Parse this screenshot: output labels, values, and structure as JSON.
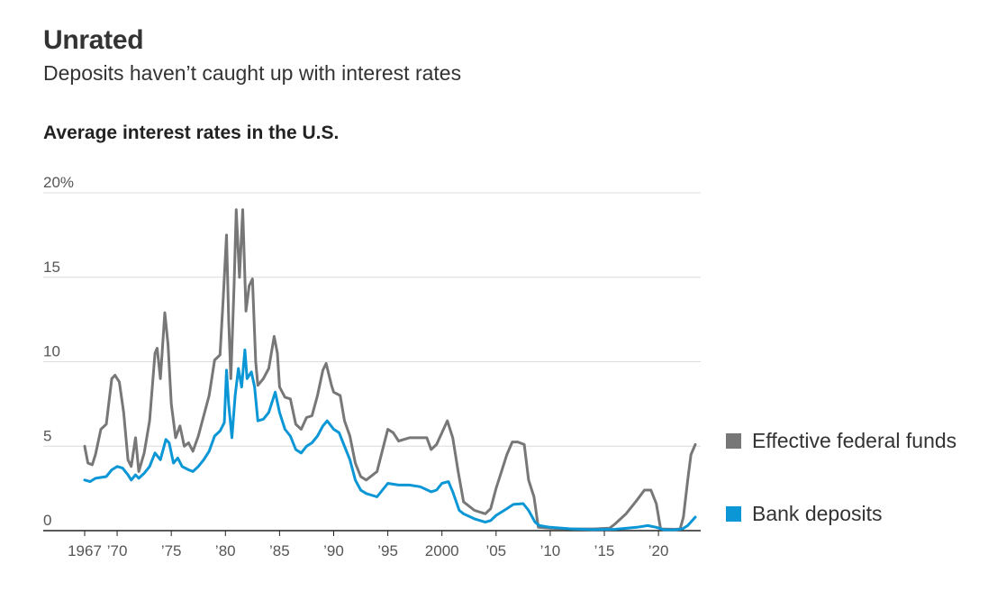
{
  "header": {
    "title": "Unrated",
    "subtitle": "Deposits haven’t caught up with interest rates"
  },
  "chart_data": {
    "type": "line",
    "title": "Average interest rates in the U.S.",
    "ylim": [
      0,
      20
    ],
    "xlim": [
      1967,
      2023.4
    ],
    "grid": true,
    "y_ticks": [
      {
        "value": 20,
        "label": "20%"
      },
      {
        "value": 15,
        "label": "15"
      },
      {
        "value": 10,
        "label": "10"
      },
      {
        "value": 5,
        "label": "5"
      },
      {
        "value": 0,
        "label": "0"
      }
    ],
    "x_ticks": [
      {
        "value": 1967,
        "label": "1967"
      },
      {
        "value": 1970,
        "label": "’70"
      },
      {
        "value": 1975,
        "label": "’75"
      },
      {
        "value": 1980,
        "label": "’80"
      },
      {
        "value": 1985,
        "label": "’85"
      },
      {
        "value": 1990,
        "label": "’90"
      },
      {
        "value": 1995,
        "label": "’95"
      },
      {
        "value": 2000,
        "label": "2000"
      },
      {
        "value": 2005,
        "label": "’05"
      },
      {
        "value": 2010,
        "label": "’10"
      },
      {
        "value": 2015,
        "label": "’15"
      },
      {
        "value": 2020,
        "label": "’20"
      }
    ],
    "legend_position": "right",
    "series": [
      {
        "name": "Effective federal funds",
        "color": "#777777",
        "points": [
          [
            1967.0,
            5.0
          ],
          [
            1967.3,
            4.0
          ],
          [
            1967.7,
            3.9
          ],
          [
            1968.0,
            4.5
          ],
          [
            1968.5,
            6.0
          ],
          [
            1969.0,
            6.3
          ],
          [
            1969.5,
            9.0
          ],
          [
            1969.8,
            9.2
          ],
          [
            1970.2,
            8.8
          ],
          [
            1970.6,
            7.0
          ],
          [
            1971.0,
            4.2
          ],
          [
            1971.3,
            3.8
          ],
          [
            1971.7,
            5.5
          ],
          [
            1972.0,
            3.5
          ],
          [
            1972.5,
            4.6
          ],
          [
            1973.0,
            6.5
          ],
          [
            1973.5,
            10.5
          ],
          [
            1973.7,
            10.8
          ],
          [
            1974.0,
            9.0
          ],
          [
            1974.4,
            12.9
          ],
          [
            1974.7,
            11.0
          ],
          [
            1975.0,
            7.5
          ],
          [
            1975.4,
            5.5
          ],
          [
            1975.8,
            6.2
          ],
          [
            1976.2,
            5.0
          ],
          [
            1976.6,
            5.2
          ],
          [
            1977.0,
            4.7
          ],
          [
            1977.5,
            5.6
          ],
          [
            1978.0,
            6.8
          ],
          [
            1978.5,
            8.0
          ],
          [
            1979.0,
            10.1
          ],
          [
            1979.5,
            10.4
          ],
          [
            1979.8,
            13.8
          ],
          [
            1980.1,
            17.5
          ],
          [
            1980.3,
            12.5
          ],
          [
            1980.5,
            9.0
          ],
          [
            1980.8,
            14.5
          ],
          [
            1981.0,
            19.0
          ],
          [
            1981.3,
            15.0
          ],
          [
            1981.6,
            19.0
          ],
          [
            1981.9,
            13.0
          ],
          [
            1982.2,
            14.5
          ],
          [
            1982.5,
            14.9
          ],
          [
            1982.8,
            10.0
          ],
          [
            1983.0,
            8.6
          ],
          [
            1983.5,
            9.0
          ],
          [
            1984.0,
            9.6
          ],
          [
            1984.5,
            11.5
          ],
          [
            1984.8,
            10.5
          ],
          [
            1985.0,
            8.5
          ],
          [
            1985.5,
            7.9
          ],
          [
            1986.0,
            7.8
          ],
          [
            1986.5,
            6.3
          ],
          [
            1987.0,
            6.0
          ],
          [
            1987.5,
            6.7
          ],
          [
            1988.0,
            6.8
          ],
          [
            1988.5,
            8.0
          ],
          [
            1989.0,
            9.5
          ],
          [
            1989.3,
            9.9
          ],
          [
            1989.8,
            8.6
          ],
          [
            1990.0,
            8.2
          ],
          [
            1990.6,
            8.0
          ],
          [
            1991.0,
            6.5
          ],
          [
            1991.5,
            5.6
          ],
          [
            1992.0,
            4.0
          ],
          [
            1992.5,
            3.2
          ],
          [
            1993.0,
            3.0
          ],
          [
            1994.0,
            3.5
          ],
          [
            1994.6,
            5.0
          ],
          [
            1995.0,
            6.0
          ],
          [
            1995.5,
            5.8
          ],
          [
            1996.0,
            5.3
          ],
          [
            1997.0,
            5.5
          ],
          [
            1998.0,
            5.5
          ],
          [
            1998.6,
            5.5
          ],
          [
            1999.0,
            4.8
          ],
          [
            1999.5,
            5.1
          ],
          [
            2000.0,
            5.8
          ],
          [
            2000.5,
            6.5
          ],
          [
            2001.0,
            5.5
          ],
          [
            2001.5,
            3.5
          ],
          [
            2002.0,
            1.7
          ],
          [
            2003.0,
            1.2
          ],
          [
            2004.0,
            1.0
          ],
          [
            2004.5,
            1.3
          ],
          [
            2005.0,
            2.5
          ],
          [
            2005.5,
            3.5
          ],
          [
            2006.0,
            4.5
          ],
          [
            2006.5,
            5.25
          ],
          [
            2007.0,
            5.25
          ],
          [
            2007.6,
            5.1
          ],
          [
            2008.0,
            3.0
          ],
          [
            2008.5,
            2.0
          ],
          [
            2008.9,
            0.2
          ],
          [
            2010.0,
            0.15
          ],
          [
            2012.0,
            0.1
          ],
          [
            2014.0,
            0.1
          ],
          [
            2015.5,
            0.15
          ],
          [
            2016.0,
            0.4
          ],
          [
            2017.0,
            1.0
          ],
          [
            2018.0,
            1.8
          ],
          [
            2018.7,
            2.4
          ],
          [
            2019.3,
            2.4
          ],
          [
            2019.8,
            1.6
          ],
          [
            2020.2,
            0.1
          ],
          [
            2021.5,
            0.08
          ],
          [
            2022.0,
            0.1
          ],
          [
            2022.3,
            0.8
          ],
          [
            2022.7,
            3.0
          ],
          [
            2023.0,
            4.5
          ],
          [
            2023.4,
            5.1
          ]
        ]
      },
      {
        "name": "Bank deposits",
        "color": "#0b96d6",
        "points": [
          [
            1967.0,
            3.0
          ],
          [
            1967.5,
            2.9
          ],
          [
            1968.0,
            3.1
          ],
          [
            1969.0,
            3.2
          ],
          [
            1969.5,
            3.6
          ],
          [
            1970.0,
            3.8
          ],
          [
            1970.5,
            3.7
          ],
          [
            1971.0,
            3.3
          ],
          [
            1971.3,
            3.0
          ],
          [
            1971.7,
            3.3
          ],
          [
            1972.0,
            3.1
          ],
          [
            1972.5,
            3.4
          ],
          [
            1973.0,
            3.8
          ],
          [
            1973.5,
            4.6
          ],
          [
            1974.0,
            4.2
          ],
          [
            1974.5,
            5.4
          ],
          [
            1974.8,
            5.2
          ],
          [
            1975.2,
            4.0
          ],
          [
            1975.6,
            4.3
          ],
          [
            1976.0,
            3.8
          ],
          [
            1976.6,
            3.6
          ],
          [
            1977.0,
            3.5
          ],
          [
            1977.5,
            3.8
          ],
          [
            1978.0,
            4.2
          ],
          [
            1978.5,
            4.7
          ],
          [
            1979.0,
            5.6
          ],
          [
            1979.5,
            5.9
          ],
          [
            1979.9,
            6.4
          ],
          [
            1980.1,
            9.5
          ],
          [
            1980.3,
            7.5
          ],
          [
            1980.6,
            5.5
          ],
          [
            1980.9,
            8.0
          ],
          [
            1981.2,
            9.6
          ],
          [
            1981.5,
            8.5
          ],
          [
            1981.8,
            10.7
          ],
          [
            1982.0,
            9.0
          ],
          [
            1982.4,
            9.4
          ],
          [
            1982.7,
            8.5
          ],
          [
            1983.0,
            6.5
          ],
          [
            1983.5,
            6.6
          ],
          [
            1984.0,
            7.0
          ],
          [
            1984.6,
            8.2
          ],
          [
            1985.0,
            7.0
          ],
          [
            1985.5,
            6.0
          ],
          [
            1986.0,
            5.6
          ],
          [
            1986.5,
            4.8
          ],
          [
            1987.0,
            4.6
          ],
          [
            1987.5,
            5.0
          ],
          [
            1988.0,
            5.2
          ],
          [
            1988.5,
            5.6
          ],
          [
            1989.0,
            6.2
          ],
          [
            1989.4,
            6.5
          ],
          [
            1990.0,
            6.0
          ],
          [
            1990.5,
            5.8
          ],
          [
            1991.0,
            5.0
          ],
          [
            1991.5,
            4.2
          ],
          [
            1992.0,
            3.0
          ],
          [
            1992.5,
            2.4
          ],
          [
            1993.0,
            2.2
          ],
          [
            1994.0,
            2.0
          ],
          [
            1994.5,
            2.4
          ],
          [
            1995.0,
            2.8
          ],
          [
            1996.0,
            2.7
          ],
          [
            1997.0,
            2.7
          ],
          [
            1998.0,
            2.6
          ],
          [
            1999.0,
            2.3
          ],
          [
            1999.5,
            2.4
          ],
          [
            2000.0,
            2.8
          ],
          [
            2000.6,
            2.9
          ],
          [
            2001.0,
            2.3
          ],
          [
            2001.6,
            1.2
          ],
          [
            2002.0,
            1.0
          ],
          [
            2003.0,
            0.7
          ],
          [
            2004.0,
            0.5
          ],
          [
            2004.5,
            0.6
          ],
          [
            2005.0,
            0.9
          ],
          [
            2006.0,
            1.3
          ],
          [
            2006.6,
            1.55
          ],
          [
            2007.5,
            1.6
          ],
          [
            2008.0,
            1.2
          ],
          [
            2008.6,
            0.5
          ],
          [
            2009.0,
            0.3
          ],
          [
            2010.0,
            0.2
          ],
          [
            2012.0,
            0.1
          ],
          [
            2014.0,
            0.06
          ],
          [
            2016.0,
            0.08
          ],
          [
            2018.0,
            0.2
          ],
          [
            2019.0,
            0.3
          ],
          [
            2019.8,
            0.2
          ],
          [
            2020.5,
            0.05
          ],
          [
            2021.5,
            0.05
          ],
          [
            2022.2,
            0.1
          ],
          [
            2022.7,
            0.3
          ],
          [
            2023.4,
            0.8
          ]
        ]
      }
    ]
  }
}
